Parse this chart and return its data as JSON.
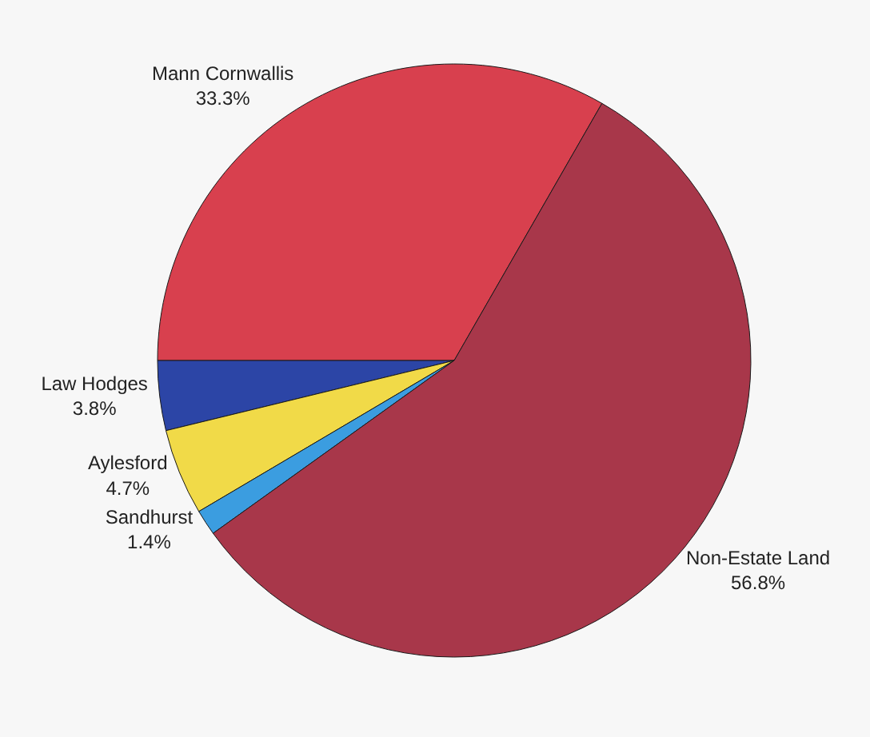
{
  "chart_data": {
    "type": "pie",
    "categories": [
      "Mann Cornwallis",
      "Law Hodges",
      "Aylesford",
      "Sandhurst",
      "Non-Estate Land"
    ],
    "values": [
      33.3,
      3.8,
      4.7,
      1.4,
      56.8
    ],
    "value_labels": [
      "33.3%",
      "3.8%",
      "4.7%",
      "1.4%",
      "56.8%"
    ],
    "colors": [
      "#d8404e",
      "#2c45a6",
      "#f1da48",
      "#3b9de0",
      "#a8374a"
    ],
    "legend": false
  }
}
